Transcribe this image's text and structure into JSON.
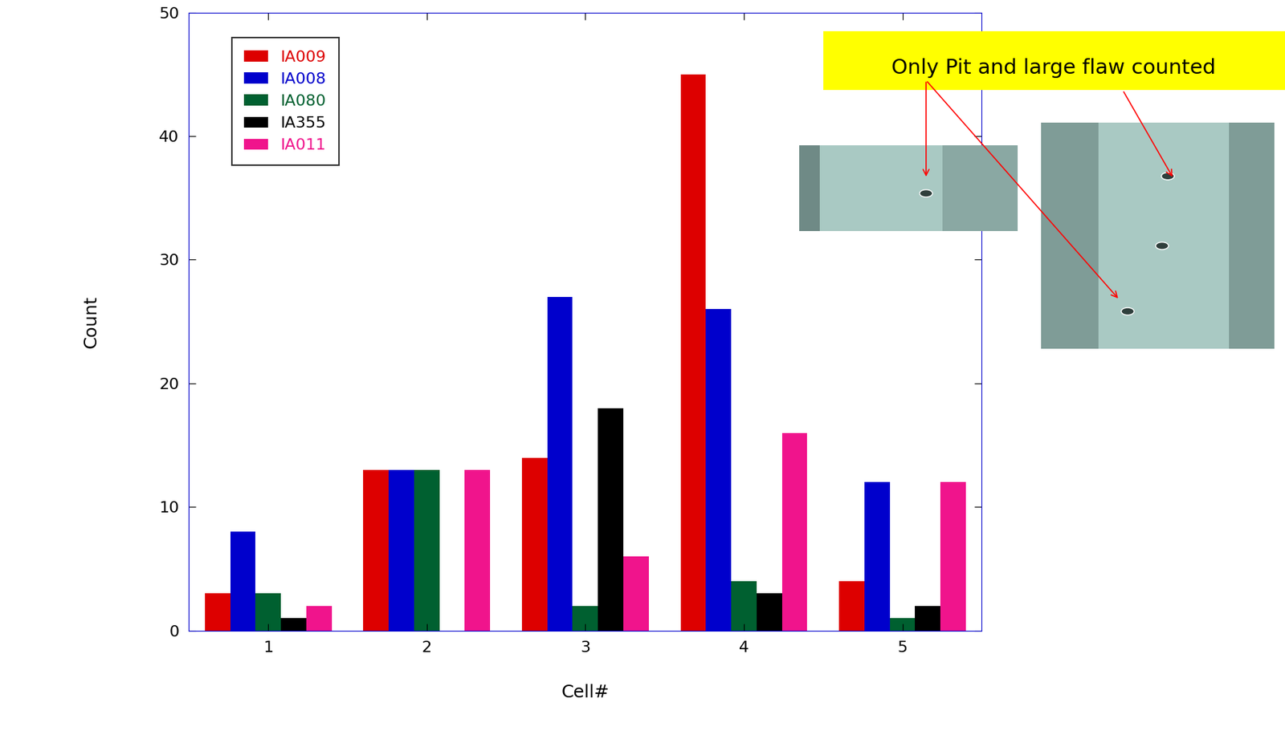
{
  "chart_data": {
    "type": "bar",
    "x_label": "Cell#",
    "y_label": "Count",
    "categories": [
      "1",
      "2",
      "3",
      "4",
      "5"
    ],
    "series": [
      {
        "name": "IA009",
        "color": "#dd0000",
        "values": [
          3,
          13,
          14,
          45,
          4
        ]
      },
      {
        "name": "IA008",
        "color": "#0000cc",
        "values": [
          8,
          13,
          27,
          26,
          12
        ]
      },
      {
        "name": "IA080",
        "color": "#006030",
        "values": [
          3,
          13,
          2,
          4,
          1
        ]
      },
      {
        "name": "IA355",
        "color": "#000000",
        "values": [
          1,
          0,
          18,
          3,
          2
        ]
      },
      {
        "name": "IA011",
        "color": "#f0148c",
        "values": [
          2,
          13,
          6,
          16,
          12
        ]
      }
    ],
    "ylim": [
      0,
      50
    ],
    "yticks": [
      0,
      10,
      20,
      30,
      40,
      50
    ],
    "legend": "upper left",
    "grid": false,
    "annotation": "Only Pit and large flaw counted"
  }
}
